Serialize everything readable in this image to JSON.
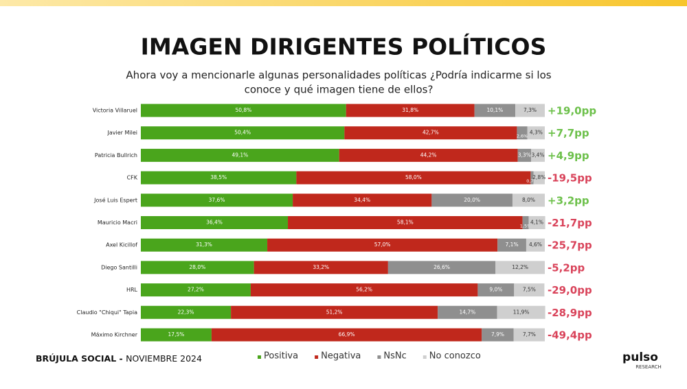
{
  "header": {
    "title": "IMAGEN DIRIGENTES POLÍTICOS",
    "subtitle_lines": [
      "Ahora voy a mencionarle algunas personalidades políticas ¿Podría indicarme si los",
      "conoce y qué imagen tiene de ellos?"
    ]
  },
  "chart_data": {
    "type": "stacked_bar_horizontal",
    "categories": [
      "Victoria Villaruel",
      "Javier Milei",
      "Patricia Bullrich",
      "CFK",
      "José Luis Espert",
      "Mauricio Macri",
      "Axel Kicillof",
      "Diego Santilli",
      "HRL",
      "Claudio \"Chiqui\" Tapia",
      "Máximo Kirchner"
    ],
    "xlim": [
      0,
      100
    ],
    "series": [
      {
        "name": "Positiva",
        "color": "#4aa51c",
        "values": [
          50.8,
          50.4,
          49.1,
          38.5,
          37.6,
          36.4,
          31.3,
          28.0,
          27.2,
          22.3,
          17.5
        ],
        "value_labels": [
          "50,8%",
          "50,4%",
          "49,1%",
          "38,5%",
          "37,6%",
          "36,4%",
          "31,3%",
          "28,0%",
          "27,2%",
          "22,3%",
          "17,5%"
        ]
      },
      {
        "name": "Negativa",
        "color": "#c0281c",
        "values": [
          31.8,
          42.7,
          44.2,
          58.0,
          34.4,
          58.1,
          57.0,
          33.2,
          56.2,
          51.2,
          66.9
        ],
        "value_labels": [
          "31,8%",
          "42,7%",
          "44,2%",
          "58,0%",
          "34,4%",
          "58,1%",
          "57,0%",
          "33,2%",
          "56,2%",
          "51,2%",
          "66,9%"
        ]
      },
      {
        "name": "NsNc",
        "color": "#8f8f8f",
        "values": [
          10.1,
          2.6,
          3.3,
          0.7,
          20.0,
          1.5,
          7.1,
          26.6,
          9.0,
          14.7,
          7.9
        ],
        "value_labels": [
          "10,1%",
          "2,6%",
          "3,3%",
          "0,7%",
          "20,0%",
          "1,5%",
          "7,1%",
          "26,6%",
          "9,0%",
          "14,7%",
          "7,9%"
        ]
      },
      {
        "name": "No conozco",
        "color": "#cfcfcf",
        "values": [
          7.3,
          4.3,
          3.4,
          2.8,
          8.0,
          4.1,
          4.6,
          12.2,
          7.5,
          11.9,
          7.7
        ],
        "value_labels": [
          "7,3%",
          "4,3%",
          "3,4%",
          "2,8%",
          "8,0%",
          "4,1%",
          "4,6%",
          "12,2%",
          "7,5%",
          "11,9%",
          "7,7%"
        ]
      }
    ],
    "net": {
      "values": [
        19.0,
        7.7,
        4.9,
        -19.5,
        3.2,
        -21.7,
        -25.7,
        -5.2,
        -29.0,
        -28.9,
        -49.4
      ],
      "value_labels": [
        "+19,0pp",
        "+7,7pp",
        "+4,9pp",
        "-19,5pp",
        "+3,2pp",
        "-21,7pp",
        "-25,7pp",
        "-5,2pp",
        "-29,0pp",
        "-28,9pp",
        "-49,4pp"
      ],
      "positive_color": "#6cc04a",
      "negative_color": "#d9435a"
    }
  },
  "footer": {
    "source_bold": "BRÚJULA SOCIAL -",
    "source_date": "NOVIEMBRE 2024",
    "logo": "pulso",
    "logo_sub": "RESEARCH"
  }
}
